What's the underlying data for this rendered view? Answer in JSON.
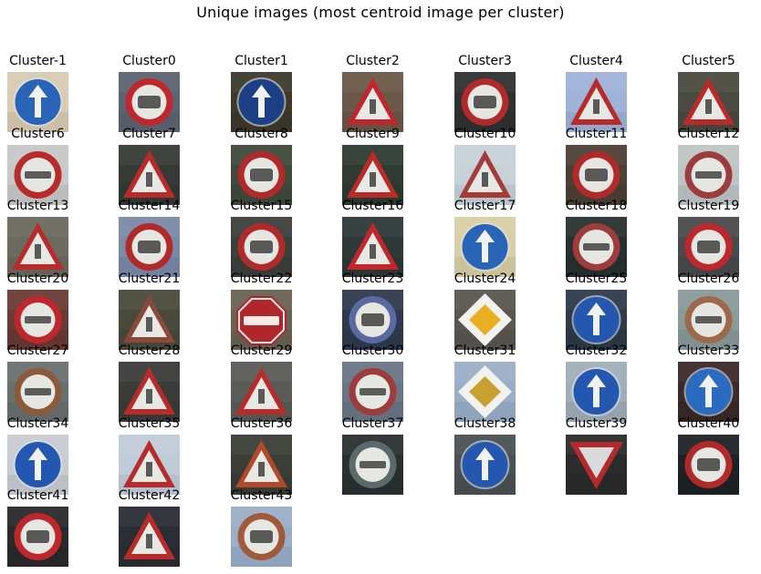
{
  "title": "Unique images (most centroid image per cluster)",
  "cells": [
    {
      "label": "Cluster-1",
      "icon": "round-blue-sign",
      "bg": "#d9cbb2",
      "color": "#2a64b6"
    },
    {
      "label": "Cluster0",
      "icon": "speed-limit-sign",
      "bg": "#5d6370",
      "color": "#c0272d"
    },
    {
      "label": "Cluster1",
      "icon": "round-blue-sign",
      "bg": "#3d3a2c",
      "color": "#1c3f86"
    },
    {
      "label": "Cluster2",
      "icon": "warning-triangle-sign",
      "bg": "#6b5848",
      "color": "#c0272d"
    },
    {
      "label": "Cluster3",
      "icon": "speed-limit-sign",
      "bg": "#2f3030",
      "color": "#b02a2a"
    },
    {
      "label": "Cluster4",
      "icon": "warning-triangle-sign",
      "bg": "#9fb3d8",
      "color": "#b72b2b"
    },
    {
      "label": "Cluster5",
      "icon": "warning-triangle-sign",
      "bg": "#4b4a40",
      "color": "#b72b2b"
    },
    {
      "label": "Cluster6",
      "icon": "prohibition-sign",
      "bg": "#c8c8c8",
      "color": "#b72b2b"
    },
    {
      "label": "Cluster7",
      "icon": "warning-triangle-sign",
      "bg": "#363a35",
      "color": "#b72b2b"
    },
    {
      "label": "Cluster8",
      "icon": "speed-limit-sign",
      "bg": "#3f4a3c",
      "color": "#b02a2a"
    },
    {
      "label": "Cluster9",
      "icon": "warning-triangle-sign",
      "bg": "#2e3a32",
      "color": "#b72b2b"
    },
    {
      "label": "Cluster10",
      "icon": "warning-triangle-sign",
      "bg": "#c6d2d8",
      "color": "#a53a3a"
    },
    {
      "label": "Cluster11",
      "icon": "speed-limit-sign",
      "bg": "#4c4036",
      "color": "#b02a2a"
    },
    {
      "label": "Cluster12",
      "icon": "prohibition-sign",
      "bg": "#bfc4c6",
      "color": "#9c3c3c"
    },
    {
      "label": "Cluster13",
      "icon": "warning-triangle-sign",
      "bg": "#6c6a5e",
      "color": "#b72b2b"
    },
    {
      "label": "Cluster14",
      "icon": "speed-limit-sign",
      "bg": "#7b8aa8",
      "color": "#b02a2a"
    },
    {
      "label": "Cluster15",
      "icon": "speed-limit-sign",
      "bg": "#3c3f3a",
      "color": "#b02a2a"
    },
    {
      "label": "Cluster16",
      "icon": "warning-triangle-sign",
      "bg": "#2f3838",
      "color": "#c0272d"
    },
    {
      "label": "Cluster17",
      "icon": "round-blue-sign",
      "bg": "#d8cfa6",
      "color": "#2a64b6"
    },
    {
      "label": "Cluster18",
      "icon": "prohibition-sign",
      "bg": "#283030",
      "color": "#9c3c3c"
    },
    {
      "label": "Cluster19",
      "icon": "speed-limit-sign",
      "bg": "#4a4a4c",
      "color": "#c0272d"
    },
    {
      "label": "Cluster20",
      "icon": "prohibition-sign",
      "bg": "#6a3a34",
      "color": "#c0272d"
    },
    {
      "label": "Cluster21",
      "icon": "warning-triangle-sign",
      "bg": "#4a4a3c",
      "color": "#8a4a3a"
    },
    {
      "label": "Cluster22",
      "icon": "stop-sign",
      "bg": "#6a6254",
      "color": "#b0262a"
    },
    {
      "label": "Cluster23",
      "icon": "speed-limit-sign",
      "bg": "#2e3a4c",
      "color": "#5a6aa0"
    },
    {
      "label": "Cluster24",
      "icon": "priority-road-sign",
      "bg": "#5a5650",
      "color": "#e8b020"
    },
    {
      "label": "Cluster25",
      "icon": "round-blue-sign",
      "bg": "#2e3a4a",
      "color": "#2458b0"
    },
    {
      "label": "Cluster26",
      "icon": "prohibition-sign",
      "bg": "#8a9a9a",
      "color": "#9c6a4a"
    },
    {
      "label": "Cluster27",
      "icon": "prohibition-sign",
      "bg": "#6a7070",
      "color": "#8a5a3a"
    },
    {
      "label": "Cluster28",
      "icon": "warning-triangle-sign",
      "bg": "#3a3c38",
      "color": "#b72b2b"
    },
    {
      "label": "Cluster29",
      "icon": "warning-triangle-sign",
      "bg": "#5a5a56",
      "color": "#b72b2b"
    },
    {
      "label": "Cluster30",
      "icon": "prohibition-sign",
      "bg": "#6a7686",
      "color": "#9c3c3c"
    },
    {
      "label": "Cluster31",
      "icon": "priority-road-sign",
      "bg": "#9aaec8",
      "color": "#c8a030"
    },
    {
      "label": "Cluster32",
      "icon": "round-blue-sign",
      "bg": "#a0aeb8",
      "color": "#2458b0"
    },
    {
      "label": "Cluster33",
      "icon": "round-blue-sign",
      "bg": "#3a2a2a",
      "color": "#2a6ac0"
    },
    {
      "label": "Cluster34",
      "icon": "round-blue-sign",
      "bg": "#c8ccd2",
      "color": "#2458b0"
    },
    {
      "label": "Cluster35",
      "icon": "warning-triangle-sign",
      "bg": "#c0ccd8",
      "color": "#b72b2b"
    },
    {
      "label": "Cluster36",
      "icon": "warning-triangle-sign",
      "bg": "#3a3e36",
      "color": "#b04a2a"
    },
    {
      "label": "Cluster37",
      "icon": "prohibition-sign",
      "bg": "#2a3030",
      "color": "#5a6a6a"
    },
    {
      "label": "Cluster38",
      "icon": "round-blue-sign",
      "bg": "#4a5054",
      "color": "#2458b0"
    },
    {
      "label": "Cluster39",
      "icon": "yield-sign",
      "bg": "#2a2c2c",
      "color": "#d8dadc"
    },
    {
      "label": "Cluster40",
      "icon": "speed-limit-sign",
      "bg": "#1e2226",
      "color": "#b02a2a"
    },
    {
      "label": "Cluster41",
      "icon": "speed-limit-sign",
      "bg": "#2a2a2c",
      "color": "#c0272d"
    },
    {
      "label": "Cluster42",
      "icon": "warning-triangle-sign",
      "bg": "#2a2e34",
      "color": "#b72b2b"
    },
    {
      "label": "Cluster43",
      "icon": "speed-limit-sign",
      "bg": "#9aaec8",
      "color": "#a05a3a"
    }
  ]
}
